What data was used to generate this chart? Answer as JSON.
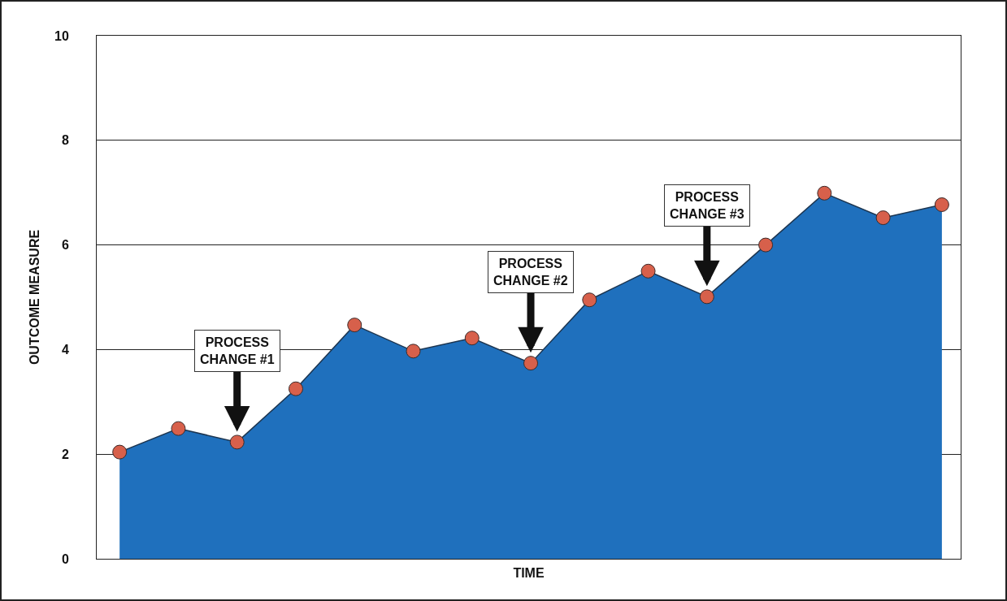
{
  "chart_data": {
    "type": "area",
    "xlabel": "TIME",
    "ylabel": "OUTCOME MEASURE",
    "categories": [
      null,
      null,
      null,
      null,
      null,
      null,
      null,
      null,
      null,
      null,
      null,
      null,
      null,
      null,
      null
    ],
    "series": [
      {
        "color": "#1f70bd",
        "values": [
          2.04,
          2.49,
          2.23,
          3.25,
          4.47,
          3.97,
          4.22,
          3.74,
          4.95,
          5.5,
          5.01,
          6.0,
          6.99,
          6.52,
          6.77
        ]
      }
    ],
    "ylim": [
      0,
      10
    ],
    "yticks": [
      0,
      2,
      4,
      6,
      8,
      10
    ],
    "grid": "y",
    "marker": "circle",
    "line_style": "solid",
    "annotations": [
      {
        "text": "PROCESS\nCHANGE #1",
        "y": 2.23
      },
      {
        "text": "PROCESS\nCHANGE #2",
        "y": 3.74
      },
      {
        "text": "PROCESS\nCHANGE #3",
        "y": 5.01
      }
    ]
  }
}
